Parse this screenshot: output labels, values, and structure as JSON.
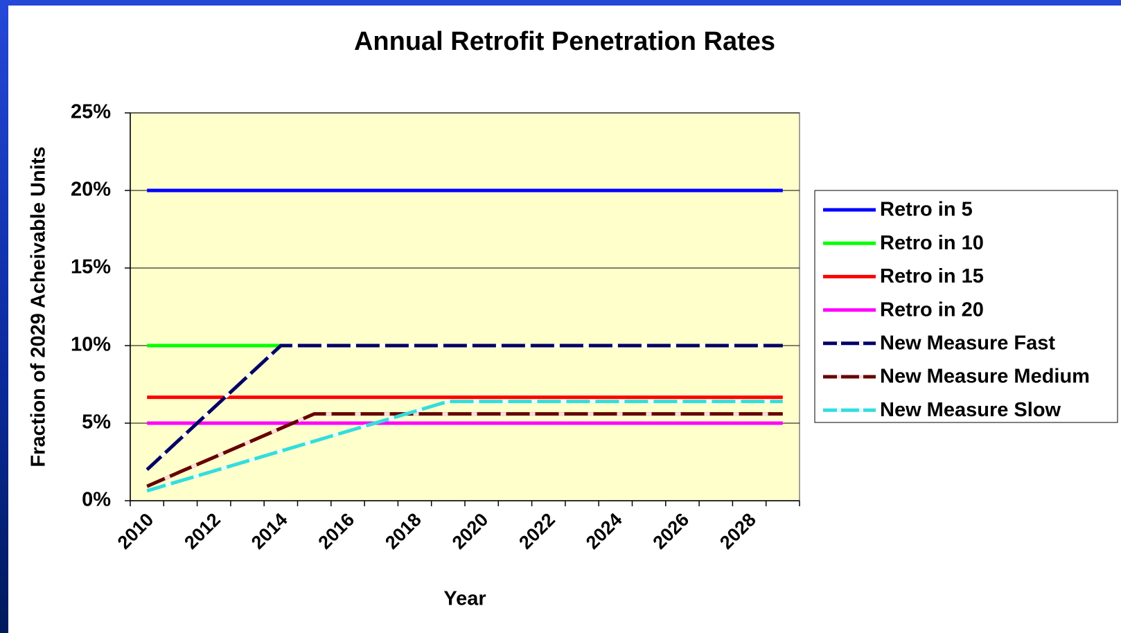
{
  "chart_data": {
    "type": "line",
    "title": "Annual Retrofit Penetration Rates",
    "x_label": "Year",
    "y_label": "Fraction of 2029 Acheivable Units",
    "categories": [
      "2010",
      null,
      "2012",
      null,
      "2014",
      null,
      "2016",
      null,
      "2018",
      null,
      "2020",
      null,
      "2022",
      null,
      "2024",
      null,
      "2026",
      null,
      "2028",
      null
    ],
    "ylim": [
      0,
      25
    ],
    "yticks": [
      {
        "value": 0,
        "label": "0%"
      },
      {
        "value": 5,
        "label": "5%"
      },
      {
        "value": 10,
        "label": "10%"
      },
      {
        "value": 15,
        "label": "15%"
      },
      {
        "value": 20,
        "label": "20%"
      },
      {
        "value": 25,
        "label": "25%"
      }
    ],
    "grid": true,
    "legend": "right",
    "series": [
      {
        "name": "Retro in 5",
        "color": "#0000ff",
        "values": [
          20,
          20,
          20,
          20,
          20,
          20,
          20,
          20,
          20,
          20,
          20,
          20,
          20,
          20,
          20,
          20,
          20,
          20,
          20,
          20
        ]
      },
      {
        "name": "Retro in 10",
        "color": "#00ff00",
        "values": [
          10,
          10,
          10,
          10,
          10,
          10,
          10,
          10,
          10,
          10,
          10,
          10,
          10,
          10,
          10,
          10,
          10,
          10,
          10,
          10
        ]
      },
      {
        "name": "Retro in 15",
        "color": "#ff0000",
        "values": [
          6.67,
          6.67,
          6.67,
          6.67,
          6.67,
          6.67,
          6.67,
          6.67,
          6.67,
          6.67,
          6.67,
          6.67,
          6.67,
          6.67,
          6.67,
          6.67,
          6.67,
          6.67,
          6.67,
          6.67
        ]
      },
      {
        "name": "Retro in 20",
        "color": "#ff00ff",
        "values": [
          5,
          5,
          5,
          5,
          5,
          5,
          5,
          5,
          5,
          5,
          5,
          5,
          5,
          5,
          5,
          5,
          5,
          5,
          5,
          5
        ]
      },
      {
        "name": "New Measure Fast",
        "color": "#000066",
        "dash_color": "#ffffff",
        "values": [
          2,
          4,
          6,
          8,
          10,
          10,
          10,
          10,
          10,
          10,
          10,
          10,
          10,
          10,
          10,
          10,
          10,
          10,
          10,
          10
        ]
      },
      {
        "name": "New Measure Medium",
        "color": "#660000",
        "dash_color": "#ffdddd",
        "values": [
          0.93,
          1.87,
          2.8,
          3.73,
          4.67,
          5.6,
          5.6,
          5.6,
          5.6,
          5.6,
          5.6,
          5.6,
          5.6,
          5.6,
          5.6,
          5.6,
          5.6,
          5.6,
          5.6,
          5.6
        ]
      },
      {
        "name": "New Measure Slow",
        "color": "#33dddd",
        "dash_color": "#e8ffff",
        "values": [
          0.64,
          1.28,
          1.92,
          2.56,
          3.2,
          3.84,
          4.48,
          5.12,
          5.76,
          6.4,
          6.4,
          6.4,
          6.4,
          6.4,
          6.4,
          6.4,
          6.4,
          6.4,
          6.4,
          6.4
        ]
      }
    ]
  }
}
